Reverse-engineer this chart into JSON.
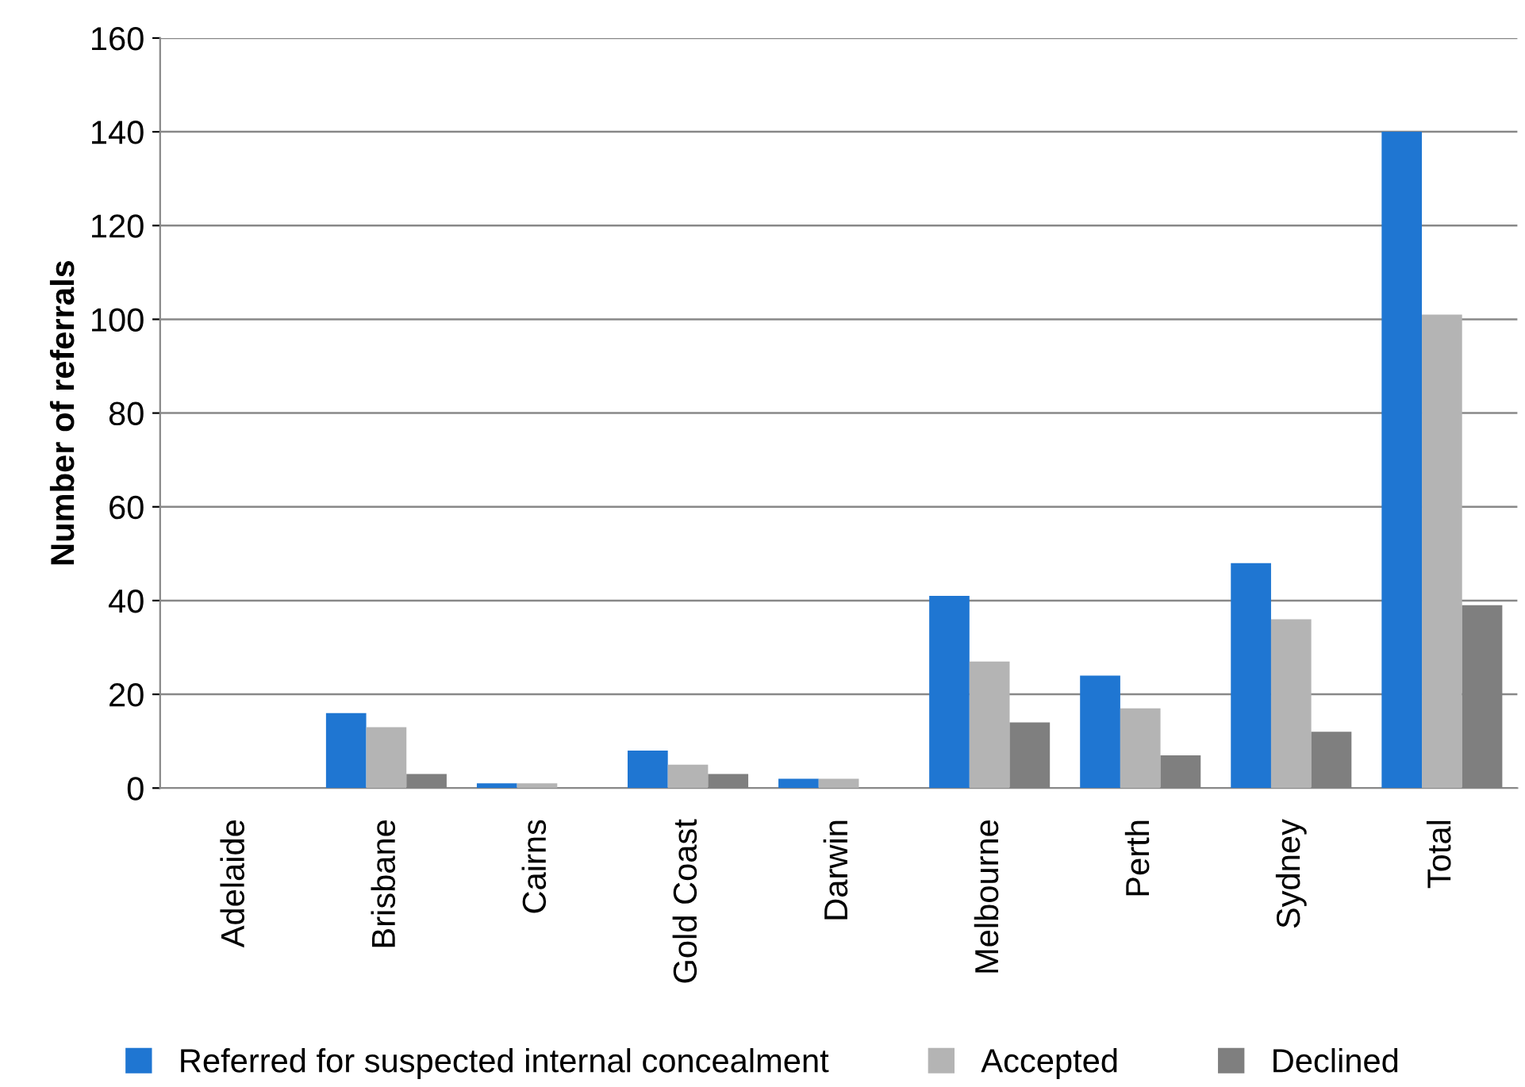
{
  "chart_data": {
    "type": "bar",
    "ylabel": "Number of referrals",
    "categories": [
      "Adelaide",
      "Brisbane",
      "Cairns",
      "Gold Coast",
      "Darwin",
      "Melbourne",
      "Perth",
      "Sydney",
      "Total"
    ],
    "series": [
      {
        "name": "Referred for suspected internal concealment",
        "color": "#1f76d2",
        "values": [
          0,
          16,
          1,
          8,
          2,
          41,
          24,
          48,
          140
        ]
      },
      {
        "name": "Accepted",
        "color": "#b4b4b4",
        "values": [
          0,
          13,
          1,
          5,
          2,
          27,
          17,
          36,
          101
        ]
      },
      {
        "name": "Declined",
        "color": "#7f7f7f",
        "values": [
          0,
          3,
          0,
          3,
          0,
          14,
          7,
          12,
          39
        ]
      }
    ],
    "ylim": [
      0,
      160
    ],
    "yticks": [
      0,
      20,
      40,
      60,
      80,
      100,
      120,
      140,
      160
    ],
    "grid": "y",
    "legend": "bottom"
  }
}
